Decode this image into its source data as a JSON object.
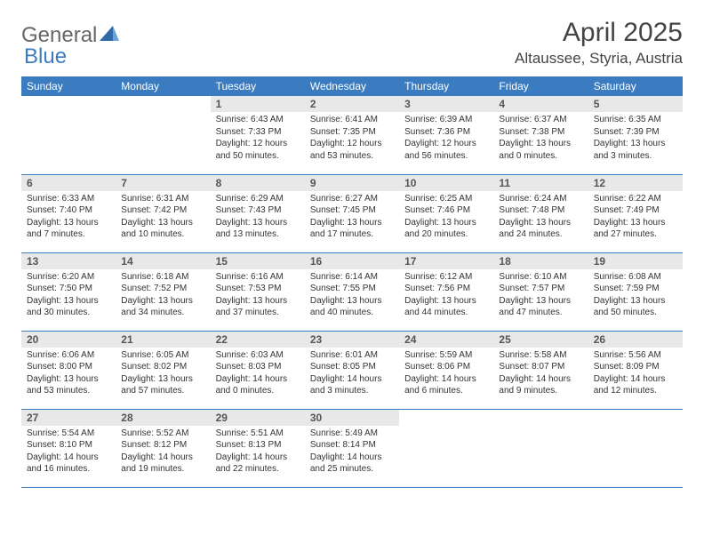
{
  "logo": {
    "text1": "General",
    "text2": "Blue"
  },
  "title": "April 2025",
  "location": "Altaussee, Styria, Austria",
  "colors": {
    "header_bg": "#3b7bbf",
    "header_fg": "#ffffff",
    "daynum_bg": "#e8e8e8",
    "border": "#3b7bbf",
    "text": "#333333"
  },
  "weekdays": [
    "Sunday",
    "Monday",
    "Tuesday",
    "Wednesday",
    "Thursday",
    "Friday",
    "Saturday"
  ],
  "weeks": [
    [
      null,
      null,
      {
        "n": "1",
        "sr": "Sunrise: 6:43 AM",
        "ss": "Sunset: 7:33 PM",
        "dl": "Daylight: 12 hours and 50 minutes."
      },
      {
        "n": "2",
        "sr": "Sunrise: 6:41 AM",
        "ss": "Sunset: 7:35 PM",
        "dl": "Daylight: 12 hours and 53 minutes."
      },
      {
        "n": "3",
        "sr": "Sunrise: 6:39 AM",
        "ss": "Sunset: 7:36 PM",
        "dl": "Daylight: 12 hours and 56 minutes."
      },
      {
        "n": "4",
        "sr": "Sunrise: 6:37 AM",
        "ss": "Sunset: 7:38 PM",
        "dl": "Daylight: 13 hours and 0 minutes."
      },
      {
        "n": "5",
        "sr": "Sunrise: 6:35 AM",
        "ss": "Sunset: 7:39 PM",
        "dl": "Daylight: 13 hours and 3 minutes."
      }
    ],
    [
      {
        "n": "6",
        "sr": "Sunrise: 6:33 AM",
        "ss": "Sunset: 7:40 PM",
        "dl": "Daylight: 13 hours and 7 minutes."
      },
      {
        "n": "7",
        "sr": "Sunrise: 6:31 AM",
        "ss": "Sunset: 7:42 PM",
        "dl": "Daylight: 13 hours and 10 minutes."
      },
      {
        "n": "8",
        "sr": "Sunrise: 6:29 AM",
        "ss": "Sunset: 7:43 PM",
        "dl": "Daylight: 13 hours and 13 minutes."
      },
      {
        "n": "9",
        "sr": "Sunrise: 6:27 AM",
        "ss": "Sunset: 7:45 PM",
        "dl": "Daylight: 13 hours and 17 minutes."
      },
      {
        "n": "10",
        "sr": "Sunrise: 6:25 AM",
        "ss": "Sunset: 7:46 PM",
        "dl": "Daylight: 13 hours and 20 minutes."
      },
      {
        "n": "11",
        "sr": "Sunrise: 6:24 AM",
        "ss": "Sunset: 7:48 PM",
        "dl": "Daylight: 13 hours and 24 minutes."
      },
      {
        "n": "12",
        "sr": "Sunrise: 6:22 AM",
        "ss": "Sunset: 7:49 PM",
        "dl": "Daylight: 13 hours and 27 minutes."
      }
    ],
    [
      {
        "n": "13",
        "sr": "Sunrise: 6:20 AM",
        "ss": "Sunset: 7:50 PM",
        "dl": "Daylight: 13 hours and 30 minutes."
      },
      {
        "n": "14",
        "sr": "Sunrise: 6:18 AM",
        "ss": "Sunset: 7:52 PM",
        "dl": "Daylight: 13 hours and 34 minutes."
      },
      {
        "n": "15",
        "sr": "Sunrise: 6:16 AM",
        "ss": "Sunset: 7:53 PM",
        "dl": "Daylight: 13 hours and 37 minutes."
      },
      {
        "n": "16",
        "sr": "Sunrise: 6:14 AM",
        "ss": "Sunset: 7:55 PM",
        "dl": "Daylight: 13 hours and 40 minutes."
      },
      {
        "n": "17",
        "sr": "Sunrise: 6:12 AM",
        "ss": "Sunset: 7:56 PM",
        "dl": "Daylight: 13 hours and 44 minutes."
      },
      {
        "n": "18",
        "sr": "Sunrise: 6:10 AM",
        "ss": "Sunset: 7:57 PM",
        "dl": "Daylight: 13 hours and 47 minutes."
      },
      {
        "n": "19",
        "sr": "Sunrise: 6:08 AM",
        "ss": "Sunset: 7:59 PM",
        "dl": "Daylight: 13 hours and 50 minutes."
      }
    ],
    [
      {
        "n": "20",
        "sr": "Sunrise: 6:06 AM",
        "ss": "Sunset: 8:00 PM",
        "dl": "Daylight: 13 hours and 53 minutes."
      },
      {
        "n": "21",
        "sr": "Sunrise: 6:05 AM",
        "ss": "Sunset: 8:02 PM",
        "dl": "Daylight: 13 hours and 57 minutes."
      },
      {
        "n": "22",
        "sr": "Sunrise: 6:03 AM",
        "ss": "Sunset: 8:03 PM",
        "dl": "Daylight: 14 hours and 0 minutes."
      },
      {
        "n": "23",
        "sr": "Sunrise: 6:01 AM",
        "ss": "Sunset: 8:05 PM",
        "dl": "Daylight: 14 hours and 3 minutes."
      },
      {
        "n": "24",
        "sr": "Sunrise: 5:59 AM",
        "ss": "Sunset: 8:06 PM",
        "dl": "Daylight: 14 hours and 6 minutes."
      },
      {
        "n": "25",
        "sr": "Sunrise: 5:58 AM",
        "ss": "Sunset: 8:07 PM",
        "dl": "Daylight: 14 hours and 9 minutes."
      },
      {
        "n": "26",
        "sr": "Sunrise: 5:56 AM",
        "ss": "Sunset: 8:09 PM",
        "dl": "Daylight: 14 hours and 12 minutes."
      }
    ],
    [
      {
        "n": "27",
        "sr": "Sunrise: 5:54 AM",
        "ss": "Sunset: 8:10 PM",
        "dl": "Daylight: 14 hours and 16 minutes."
      },
      {
        "n": "28",
        "sr": "Sunrise: 5:52 AM",
        "ss": "Sunset: 8:12 PM",
        "dl": "Daylight: 14 hours and 19 minutes."
      },
      {
        "n": "29",
        "sr": "Sunrise: 5:51 AM",
        "ss": "Sunset: 8:13 PM",
        "dl": "Daylight: 14 hours and 22 minutes."
      },
      {
        "n": "30",
        "sr": "Sunrise: 5:49 AM",
        "ss": "Sunset: 8:14 PM",
        "dl": "Daylight: 14 hours and 25 minutes."
      },
      null,
      null,
      null
    ]
  ]
}
